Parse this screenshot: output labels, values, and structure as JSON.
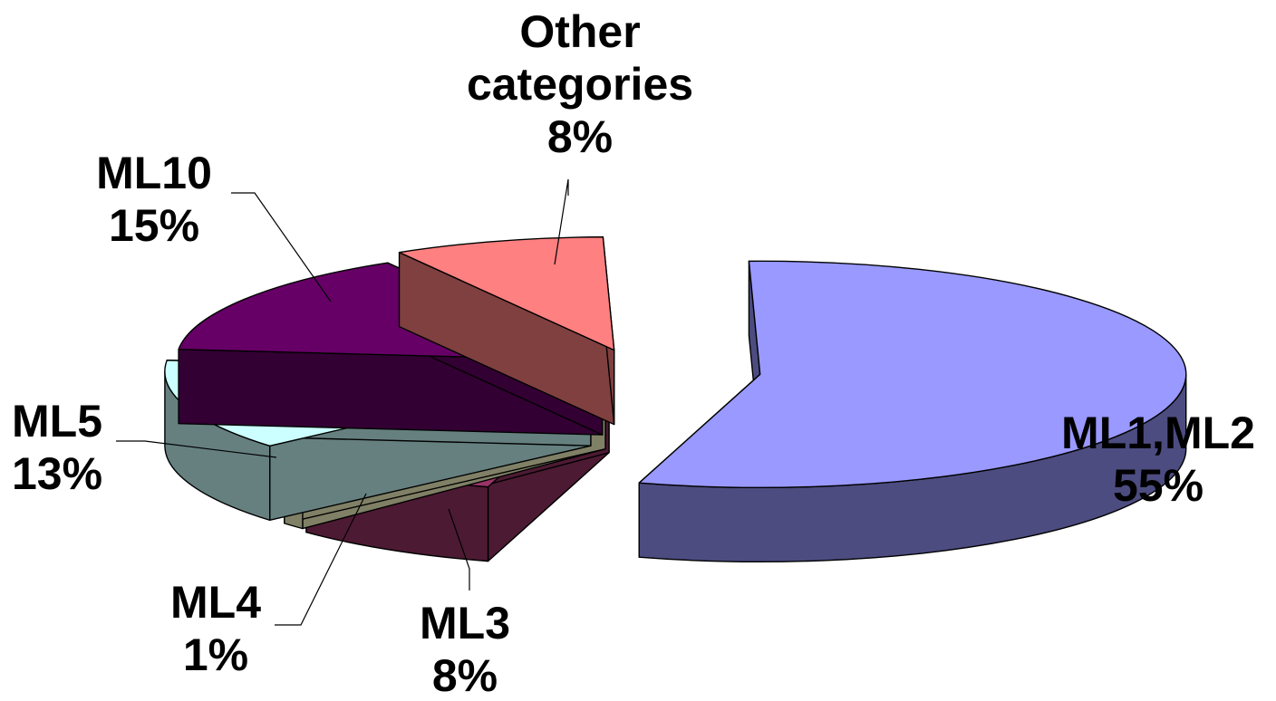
{
  "chart_data": {
    "type": "pie",
    "style": "3d-exploded",
    "title": "",
    "series": [
      {
        "values": [
          55,
          8,
          1,
          13,
          15,
          8
        ],
        "categories": [
          "ML1,ML2",
          "ML3",
          "ML4",
          "ML5",
          "ML10",
          "Other categories"
        ]
      }
    ],
    "slices": [
      {
        "name": "ML1,ML2",
        "label_lines": [
          "ML1,ML2"
        ],
        "value": 55,
        "value_label": "55%",
        "top_color": "#9999FF",
        "side_color": "#4C4C80"
      },
      {
        "name": "ML3",
        "label_lines": [
          "ML3"
        ],
        "value": 8,
        "value_label": "8%",
        "top_color": "#993366",
        "side_color": "#4D1A33"
      },
      {
        "name": "ML4",
        "label_lines": [
          "ML4"
        ],
        "value": 1,
        "value_label": "1%",
        "top_color": "#FFFFCC",
        "side_color": "#808066"
      },
      {
        "name": "ML5",
        "label_lines": [
          "ML5"
        ],
        "value": 13,
        "value_label": "13%",
        "top_color": "#CCFFFF",
        "side_color": "#668080"
      },
      {
        "name": "ML10",
        "label_lines": [
          "ML10"
        ],
        "value": 15,
        "value_label": "15%",
        "top_color": "#660066",
        "side_color": "#330033"
      },
      {
        "name": "Other categories",
        "label_lines": [
          "Other",
          "categories"
        ],
        "value": 8,
        "value_label": "8%",
        "top_color": "#FF8080",
        "side_color": "#804040"
      }
    ],
    "legend": "none",
    "data_labels": "outside-with-leader-lines"
  }
}
